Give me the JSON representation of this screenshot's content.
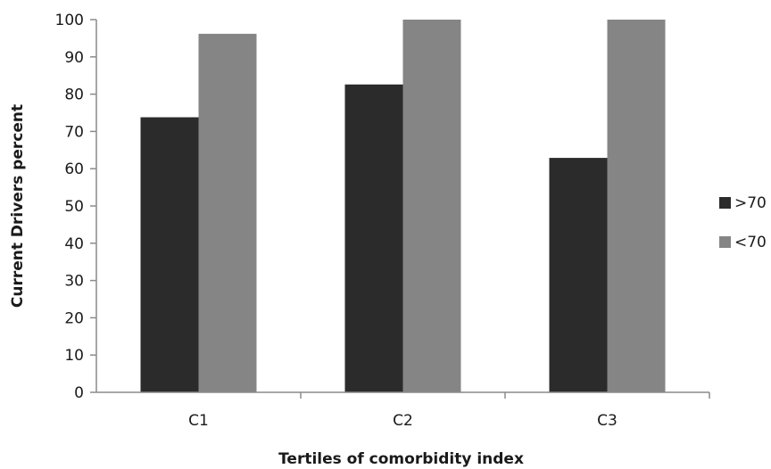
{
  "chart_data": {
    "type": "bar",
    "title": "",
    "xlabel": "Tertiles of comorbidity index",
    "ylabel": "Current Drivers percent",
    "categories": [
      "C1",
      "C2",
      "C3"
    ],
    "series": [
      {
        "name": ">70",
        "values": [
          73.8,
          82.6,
          62.9
        ],
        "color": "#2b2b2b"
      },
      {
        "name": "<70",
        "values": [
          96.2,
          100,
          100
        ],
        "color": "#858585"
      }
    ],
    "ylim": [
      0,
      100
    ],
    "yticks": [
      "0",
      "10",
      "20",
      "30",
      "40",
      "50",
      "60",
      "70",
      "80",
      "90",
      "100"
    ],
    "grid": false,
    "legend": "right"
  }
}
